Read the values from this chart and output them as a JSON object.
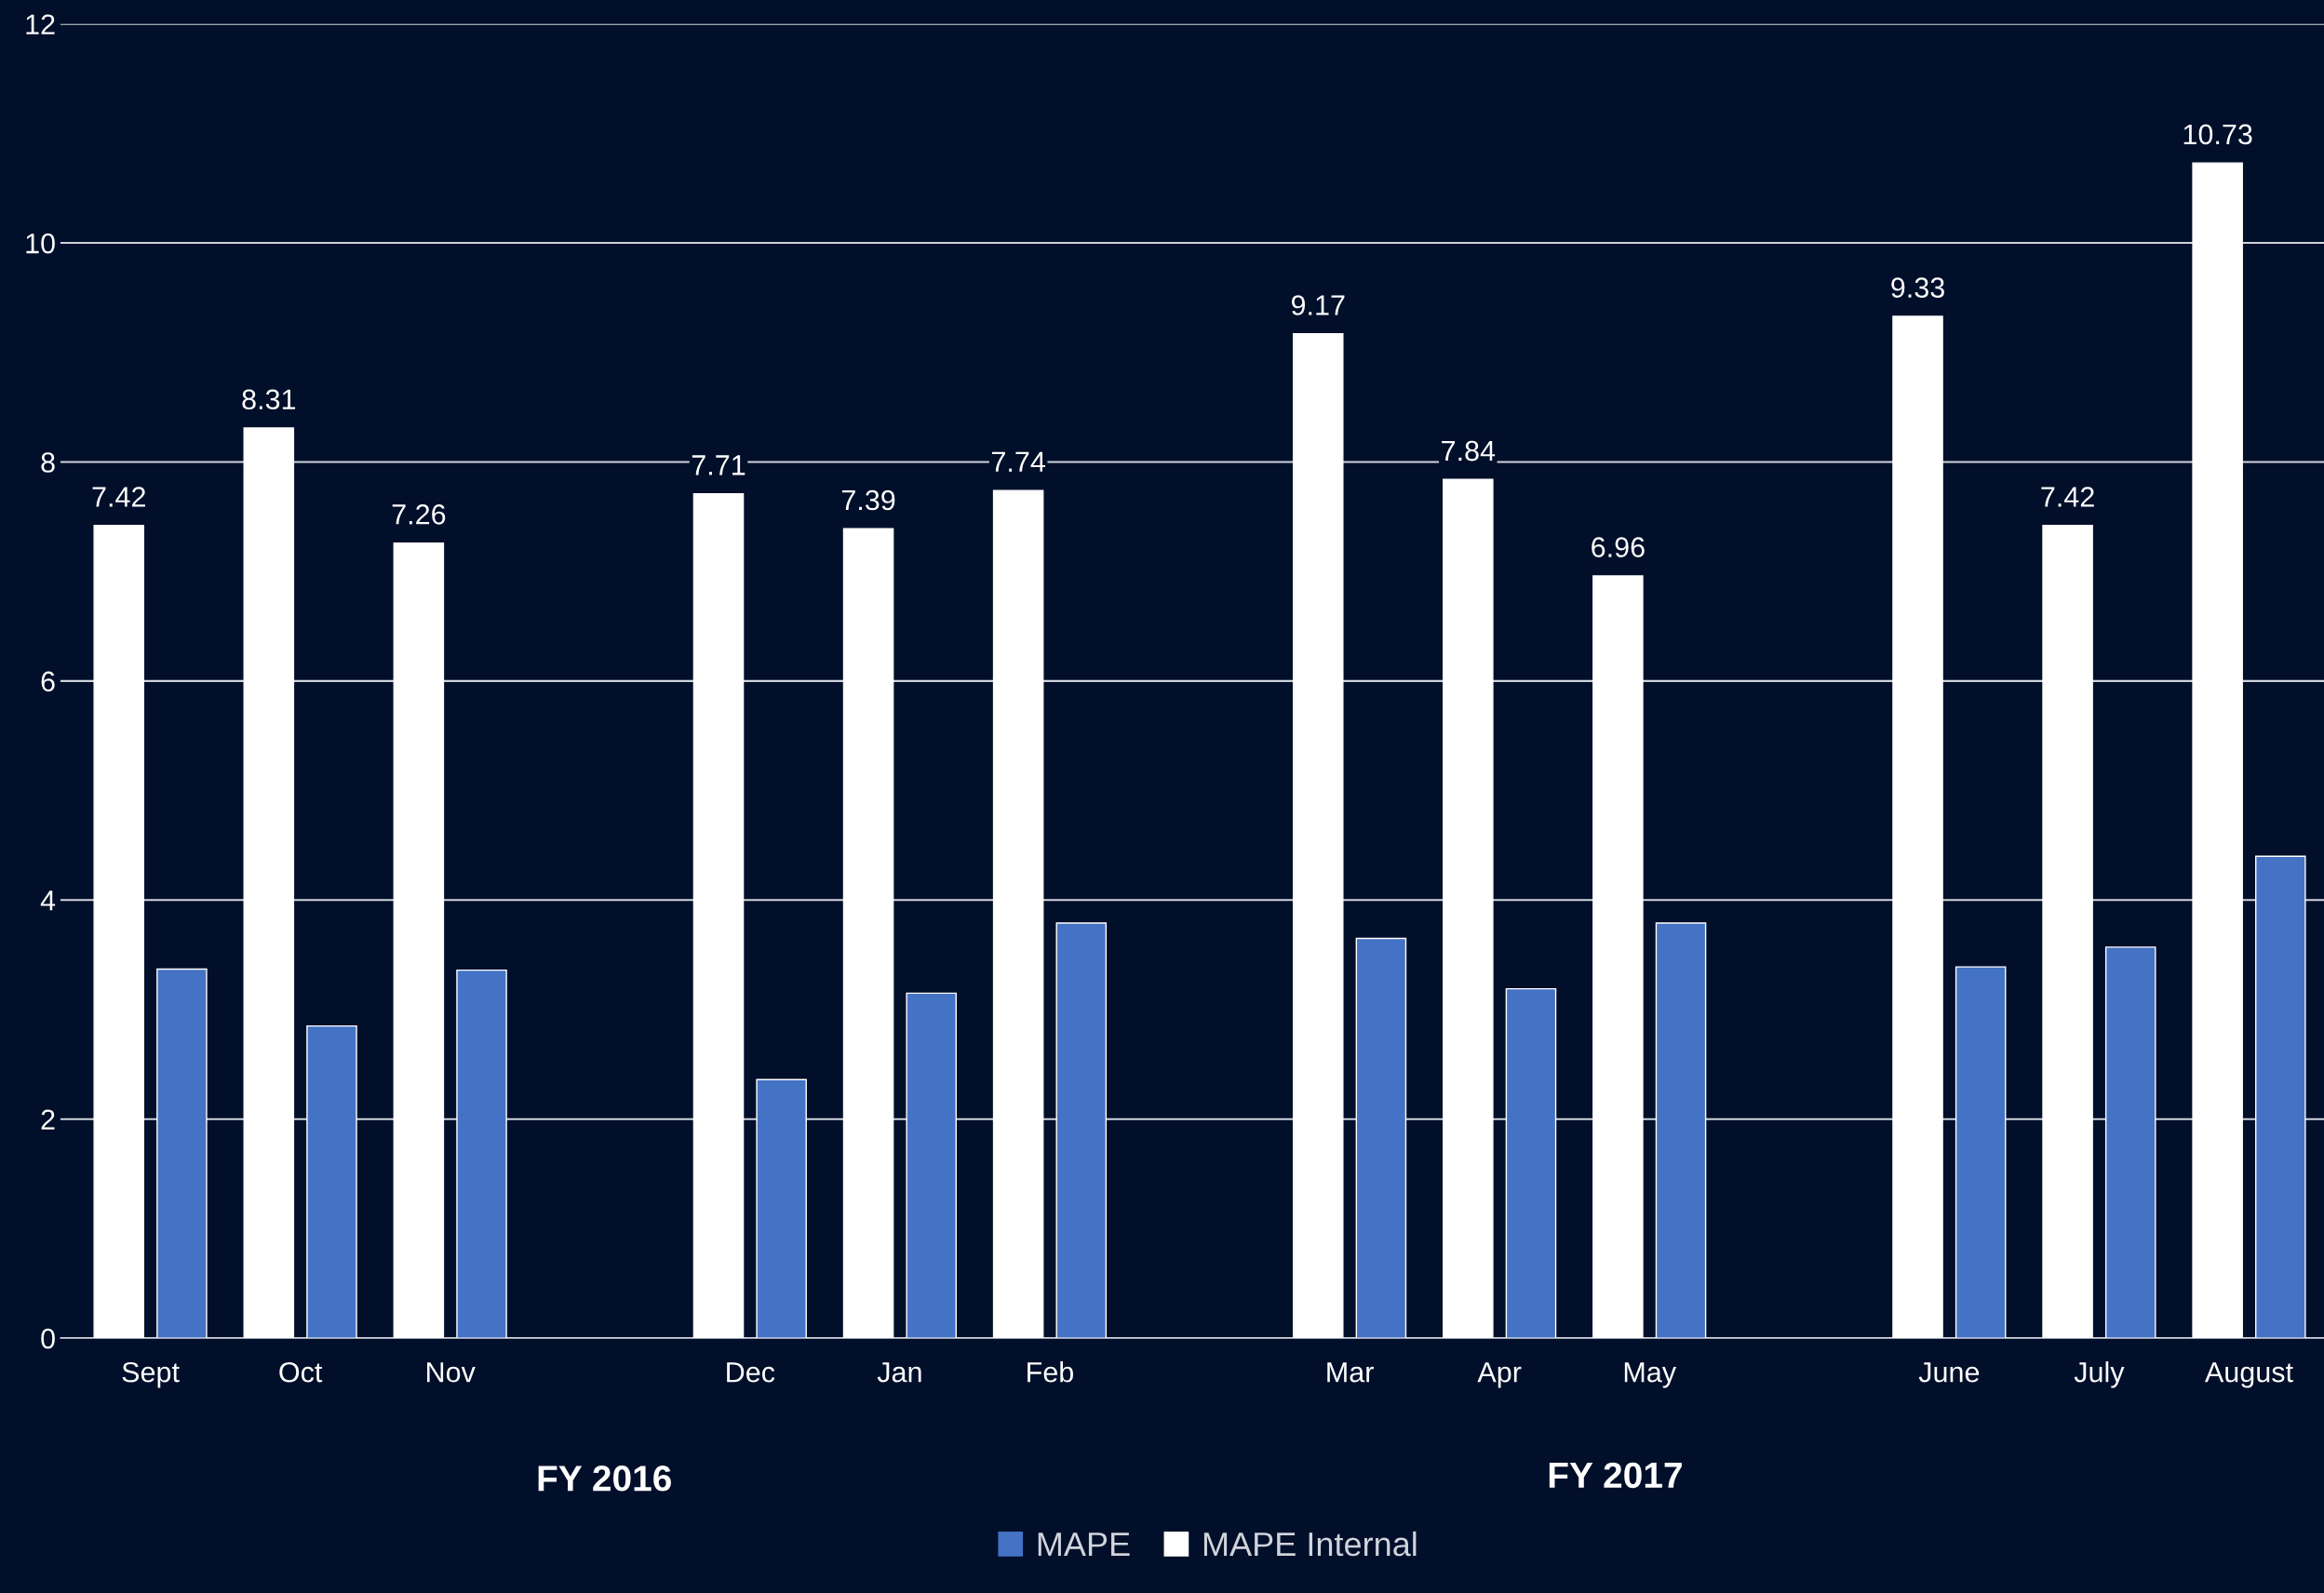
{
  "chart_data": {
    "type": "bar",
    "categories": [
      "Sept",
      "Oct",
      "Nov",
      null,
      "Dec",
      "Jan",
      "Feb",
      null,
      "Mar",
      "Apr",
      "May",
      null,
      "June",
      "July",
      "August"
    ],
    "series": [
      {
        "name": "MAPE Internal",
        "color": "#ffffff",
        "values": [
          7.42,
          8.31,
          7.26,
          null,
          7.71,
          7.39,
          7.74,
          null,
          9.17,
          7.84,
          6.96,
          null,
          9.33,
          7.42,
          10.73
        ],
        "value_labels": [
          "7.42",
          "8.31",
          "7.26",
          null,
          "7.71",
          "7.39",
          "7.74",
          null,
          "9.17",
          "7.84",
          "6.96",
          null,
          "9.33",
          "7.42",
          "10.73"
        ]
      },
      {
        "name": "MAPE",
        "color": "#4472c4",
        "values": [
          3.37,
          2.85,
          3.36,
          null,
          2.36,
          3.15,
          3.79,
          null,
          3.65,
          3.19,
          3.79,
          null,
          3.39,
          3.57,
          4.4
        ]
      }
    ],
    "ylim": [
      0,
      12
    ],
    "yticks": [
      0,
      2,
      4,
      6,
      8,
      10,
      12
    ],
    "grid": "y",
    "legend": "bottom",
    "annotations": [
      "FY 2016",
      "FY 2017"
    ]
  }
}
